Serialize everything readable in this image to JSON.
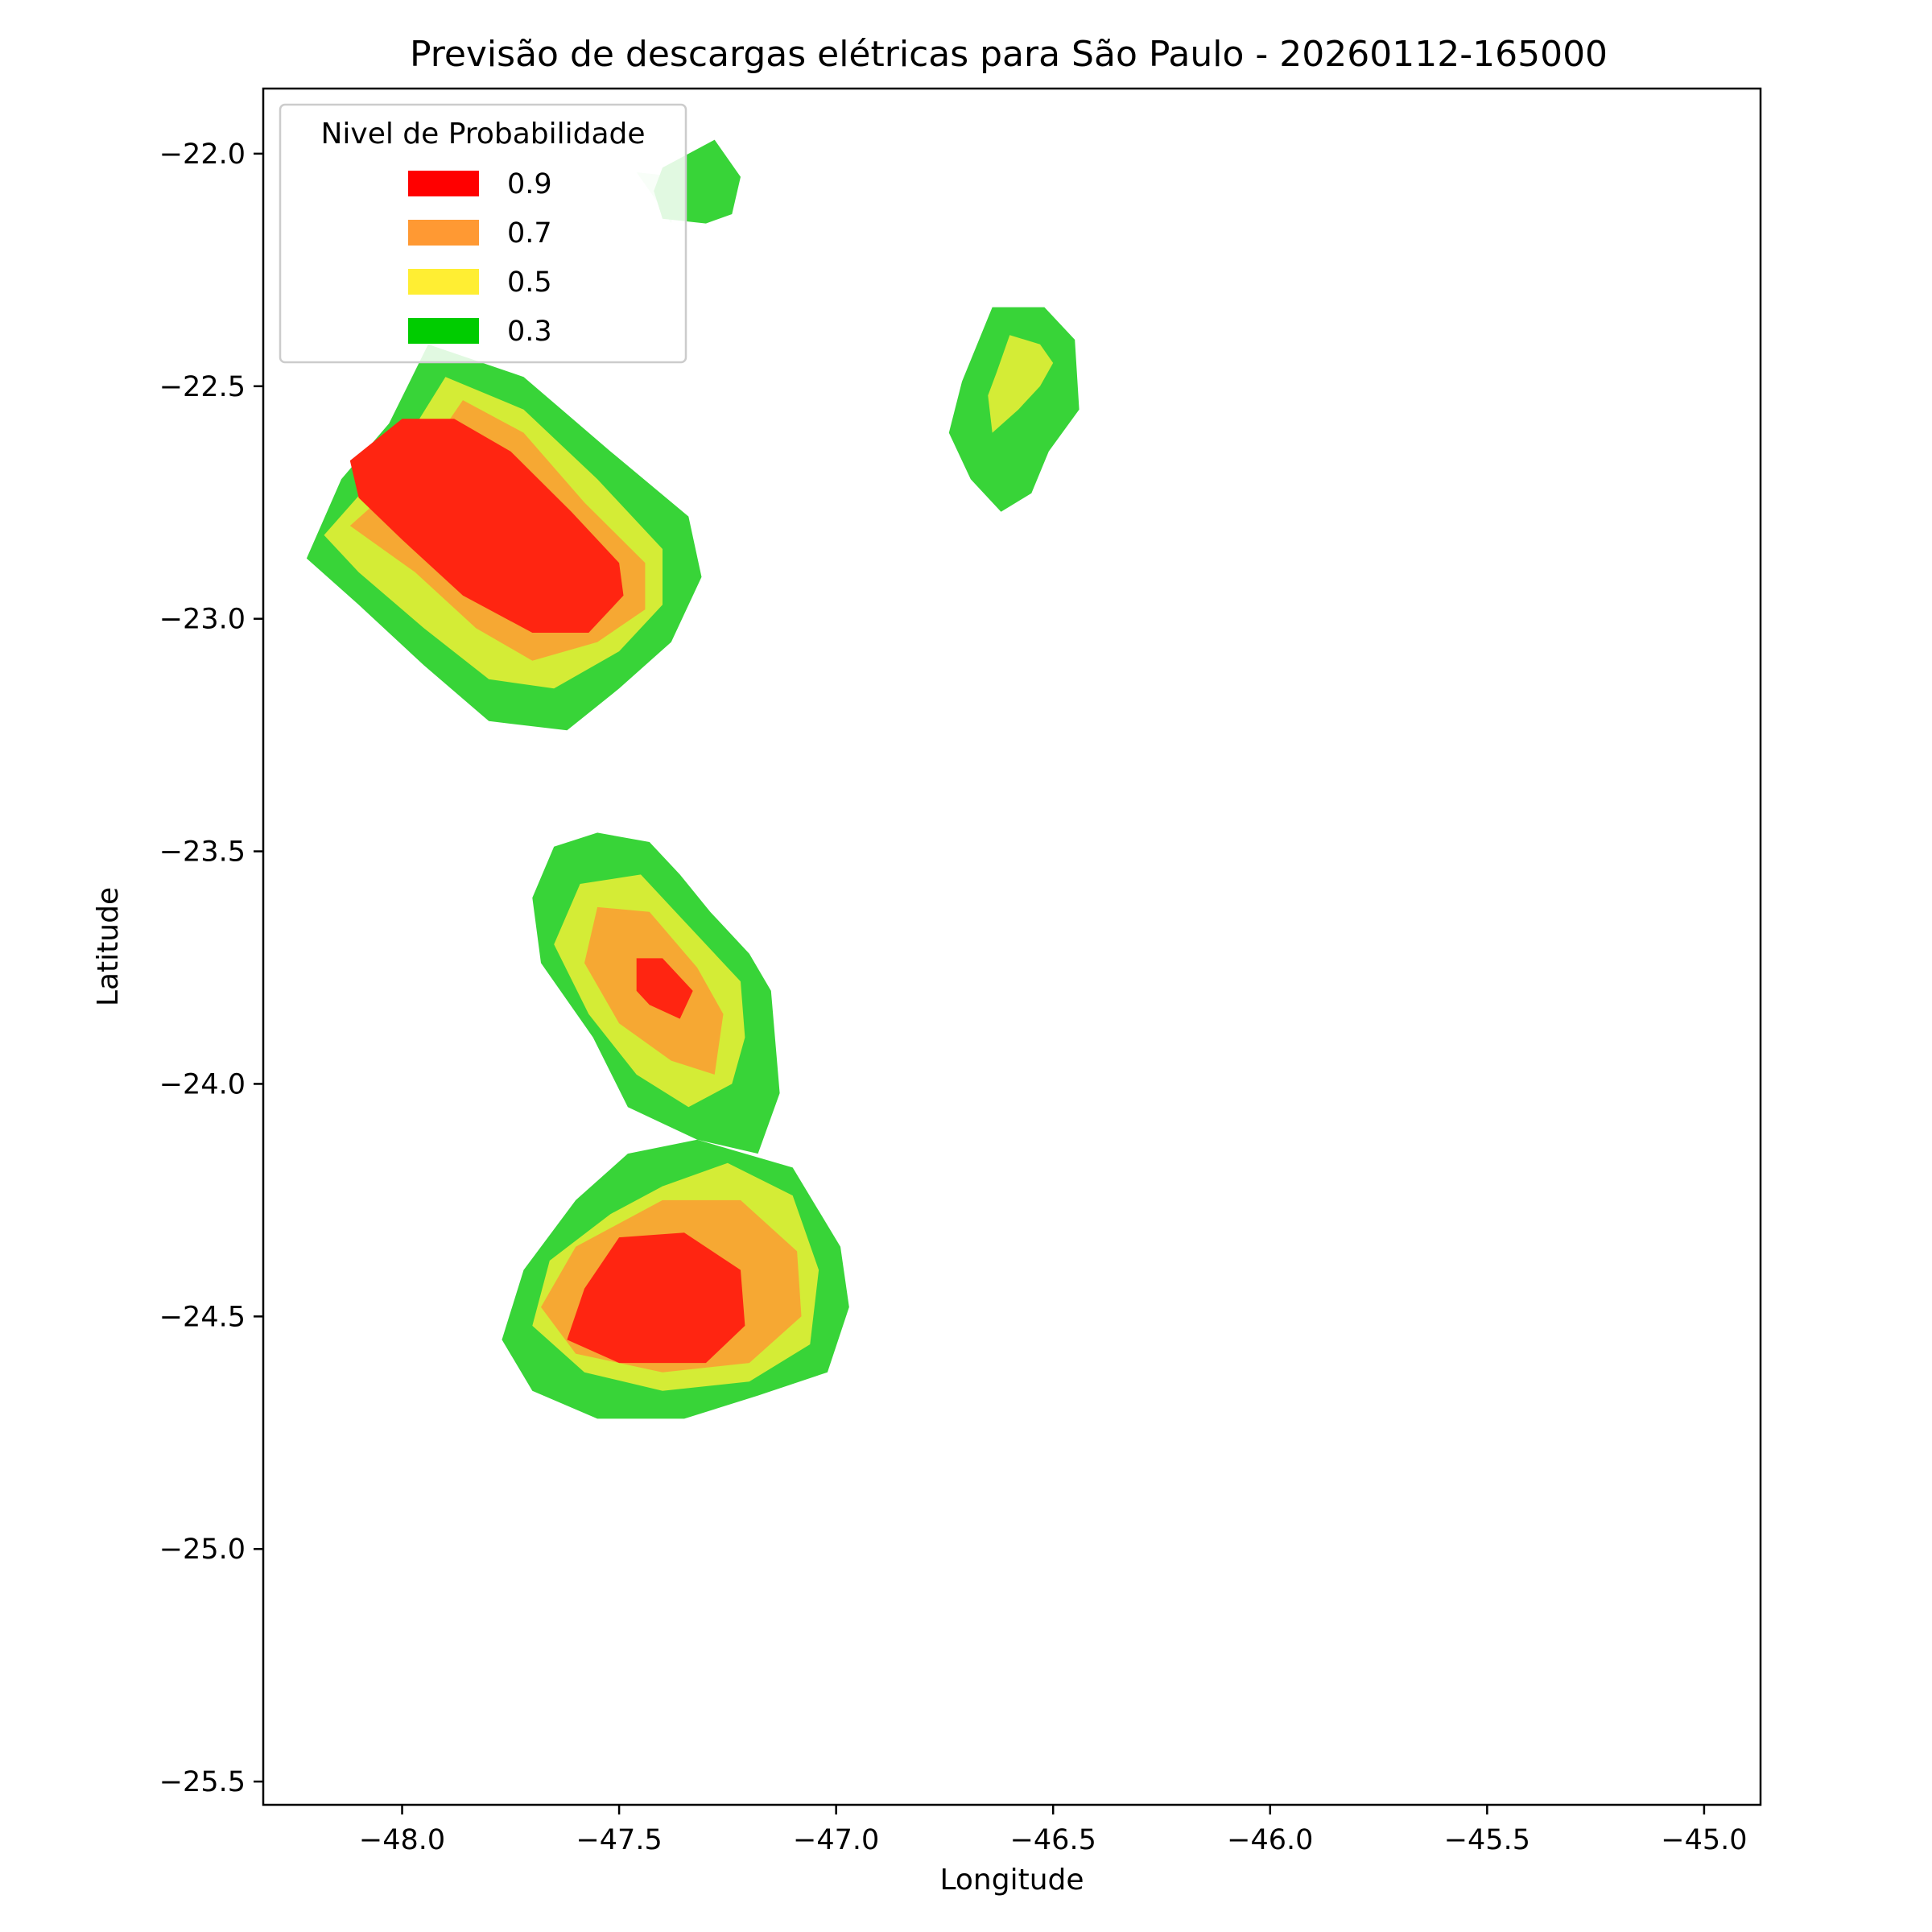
{
  "chart_data": {
    "type": "contour",
    "title": "Previsão de descargas elétricas para São Paulo - 20260112-165000",
    "xlabel": "Longitude",
    "ylabel": "Latitude",
    "xlim": [
      -48.32,
      -44.87
    ],
    "ylim": [
      -25.55,
      -21.86
    ],
    "xticks": [
      -48.0,
      -47.5,
      -47.0,
      -46.5,
      -46.0,
      -45.5,
      -45.0
    ],
    "xtick_labels": [
      "−48.0",
      "−47.5",
      "−47.0",
      "−46.5",
      "−46.0",
      "−45.5",
      "−45.0"
    ],
    "yticks": [
      -22.0,
      -22.5,
      -23.0,
      -23.5,
      -24.0,
      -24.5,
      -25.0,
      -25.5
    ],
    "ytick_labels": [
      "−22.0",
      "−22.5",
      "−23.0",
      "−23.5",
      "−24.0",
      "−24.5",
      "−25.0",
      "−25.5"
    ],
    "grid": false,
    "legend": {
      "title": "Nivel de Probabilidade",
      "placement": "upper-left",
      "entries": [
        {
          "label": "0.9",
          "color": "#ff0000"
        },
        {
          "label": "0.7",
          "color": "#ff9933"
        },
        {
          "label": "0.5",
          "color": "#ffee33"
        },
        {
          "label": "0.3",
          "color": "#00cc00"
        }
      ]
    },
    "fill_colors": {
      "0.3": "#38d438",
      "0.5": "#d4ec36",
      "0.7": "#f6a833",
      "0.9": "#ff2511",
      "faint": "#d2f5d2"
    },
    "regions": [
      {
        "name": "northwest-cell",
        "levels": [
          {
            "level": "0.3",
            "points": [
              [
                -48.03,
                -22.58
              ],
              [
                -47.94,
                -22.41
              ],
              [
                -47.72,
                -22.48
              ],
              [
                -47.52,
                -22.64
              ],
              [
                -47.34,
                -22.78
              ],
              [
                -47.31,
                -22.91
              ],
              [
                -47.38,
                -23.05
              ],
              [
                -47.5,
                -23.15
              ],
              [
                -47.62,
                -23.24
              ],
              [
                -47.8,
                -23.22
              ],
              [
                -47.95,
                -23.1
              ],
              [
                -48.1,
                -22.97
              ],
              [
                -48.22,
                -22.87
              ],
              [
                -48.14,
                -22.7
              ]
            ]
          },
          {
            "level": "0.5",
            "points": [
              [
                -48.0,
                -22.63
              ],
              [
                -47.9,
                -22.48
              ],
              [
                -47.72,
                -22.55
              ],
              [
                -47.55,
                -22.7
              ],
              [
                -47.4,
                -22.85
              ],
              [
                -47.4,
                -22.97
              ],
              [
                -47.5,
                -23.07
              ],
              [
                -47.65,
                -23.15
              ],
              [
                -47.8,
                -23.13
              ],
              [
                -47.95,
                -23.02
              ],
              [
                -48.1,
                -22.9
              ],
              [
                -48.18,
                -22.82
              ]
            ]
          },
          {
            "level": "0.7",
            "points": [
              [
                -47.97,
                -22.68
              ],
              [
                -47.86,
                -22.53
              ],
              [
                -47.72,
                -22.6
              ],
              [
                -47.58,
                -22.75
              ],
              [
                -47.44,
                -22.88
              ],
              [
                -47.44,
                -22.98
              ],
              [
                -47.55,
                -23.05
              ],
              [
                -47.7,
                -23.09
              ],
              [
                -47.83,
                -23.02
              ],
              [
                -47.97,
                -22.9
              ],
              [
                -48.12,
                -22.8
              ],
              [
                -48.06,
                -22.75
              ]
            ]
          },
          {
            "level": "0.9",
            "points": [
              [
                -48.12,
                -22.66
              ],
              [
                -48.0,
                -22.57
              ],
              [
                -47.88,
                -22.57
              ],
              [
                -47.75,
                -22.64
              ],
              [
                -47.61,
                -22.77
              ],
              [
                -47.5,
                -22.88
              ],
              [
                -47.49,
                -22.95
              ],
              [
                -47.57,
                -23.03
              ],
              [
                -47.7,
                -23.03
              ],
              [
                -47.86,
                -22.95
              ],
              [
                -48.0,
                -22.83
              ],
              [
                -48.1,
                -22.74
              ]
            ]
          }
        ]
      },
      {
        "name": "northern-small-cell",
        "levels": [
          {
            "level": "faint",
            "points": [
              [
                -47.46,
                -22.04
              ],
              [
                -47.36,
                -22.05
              ],
              [
                -47.38,
                -22.15
              ],
              [
                -47.4,
                -22.12
              ]
            ]
          },
          {
            "level": "0.3",
            "points": [
              [
                -47.4,
                -22.03
              ],
              [
                -47.28,
                -21.97
              ],
              [
                -47.22,
                -22.05
              ],
              [
                -47.24,
                -22.13
              ],
              [
                -47.3,
                -22.15
              ],
              [
                -47.4,
                -22.14
              ],
              [
                -47.42,
                -22.08
              ]
            ]
          }
        ]
      },
      {
        "name": "northeast-cell",
        "levels": [
          {
            "level": "0.3",
            "points": [
              [
                -46.71,
                -22.49
              ],
              [
                -46.64,
                -22.33
              ],
              [
                -46.52,
                -22.33
              ],
              [
                -46.45,
                -22.4
              ],
              [
                -46.44,
                -22.55
              ],
              [
                -46.51,
                -22.64
              ],
              [
                -46.55,
                -22.73
              ],
              [
                -46.62,
                -22.77
              ],
              [
                -46.69,
                -22.7
              ],
              [
                -46.74,
                -22.6
              ]
            ]
          },
          {
            "level": "0.5",
            "points": [
              [
                -46.63,
                -22.47
              ],
              [
                -46.6,
                -22.39
              ],
              [
                -46.53,
                -22.41
              ],
              [
                -46.5,
                -22.45
              ],
              [
                -46.53,
                -22.5
              ],
              [
                -46.58,
                -22.55
              ],
              [
                -46.64,
                -22.6
              ],
              [
                -46.65,
                -22.52
              ]
            ]
          }
        ]
      },
      {
        "name": "central-cell",
        "levels": [
          {
            "level": "0.3",
            "points": [
              [
                -47.65,
                -23.49
              ],
              [
                -47.55,
                -23.46
              ],
              [
                -47.43,
                -23.48
              ],
              [
                -47.36,
                -23.55
              ],
              [
                -47.29,
                -23.63
              ],
              [
                -47.2,
                -23.72
              ],
              [
                -47.15,
                -23.8
              ],
              [
                -47.13,
                -24.02
              ],
              [
                -47.18,
                -24.15
              ],
              [
                -47.32,
                -24.12
              ],
              [
                -47.48,
                -24.05
              ],
              [
                -47.56,
                -23.9
              ],
              [
                -47.68,
                -23.74
              ],
              [
                -47.7,
                -23.6
              ]
            ]
          },
          {
            "level": "0.5",
            "points": [
              [
                -47.59,
                -23.57
              ],
              [
                -47.45,
                -23.55
              ],
              [
                -47.33,
                -23.67
              ],
              [
                -47.22,
                -23.78
              ],
              [
                -47.21,
                -23.9
              ],
              [
                -47.24,
                -24.0
              ],
              [
                -47.34,
                -24.05
              ],
              [
                -47.46,
                -23.98
              ],
              [
                -47.57,
                -23.85
              ],
              [
                -47.65,
                -23.7
              ]
            ]
          },
          {
            "level": "0.7",
            "points": [
              [
                -47.55,
                -23.62
              ],
              [
                -47.43,
                -23.63
              ],
              [
                -47.32,
                -23.75
              ],
              [
                -47.26,
                -23.85
              ],
              [
                -47.28,
                -23.98
              ],
              [
                -47.38,
                -23.95
              ],
              [
                -47.5,
                -23.87
              ],
              [
                -47.58,
                -23.74
              ]
            ]
          },
          {
            "level": "0.9",
            "points": [
              [
                -47.46,
                -23.73
              ],
              [
                -47.4,
                -23.73
              ],
              [
                -47.33,
                -23.8
              ],
              [
                -47.36,
                -23.86
              ],
              [
                -47.43,
                -23.83
              ],
              [
                -47.46,
                -23.8
              ]
            ]
          }
        ]
      },
      {
        "name": "southern-cell",
        "levels": [
          {
            "level": "0.3",
            "points": [
              [
                -47.48,
                -24.15
              ],
              [
                -47.32,
                -24.12
              ],
              [
                -47.1,
                -24.18
              ],
              [
                -46.99,
                -24.35
              ],
              [
                -46.97,
                -24.48
              ],
              [
                -47.02,
                -24.62
              ],
              [
                -47.18,
                -24.67
              ],
              [
                -47.35,
                -24.72
              ],
              [
                -47.55,
                -24.72
              ],
              [
                -47.7,
                -24.66
              ],
              [
                -47.77,
                -24.55
              ],
              [
                -47.72,
                -24.4
              ],
              [
                -47.6,
                -24.25
              ]
            ]
          },
          {
            "level": "0.5",
            "points": [
              [
                -47.4,
                -24.22
              ],
              [
                -47.25,
                -24.17
              ],
              [
                -47.1,
                -24.24
              ],
              [
                -47.04,
                -24.4
              ],
              [
                -47.06,
                -24.56
              ],
              [
                -47.2,
                -24.64
              ],
              [
                -47.4,
                -24.66
              ],
              [
                -47.58,
                -24.62
              ],
              [
                -47.7,
                -24.52
              ],
              [
                -47.66,
                -24.38
              ],
              [
                -47.52,
                -24.28
              ]
            ]
          },
          {
            "level": "0.7",
            "points": [
              [
                -47.4,
                -24.25
              ],
              [
                -47.22,
                -24.25
              ],
              [
                -47.09,
                -24.36
              ],
              [
                -47.08,
                -24.5
              ],
              [
                -47.2,
                -24.6
              ],
              [
                -47.4,
                -24.62
              ],
              [
                -47.6,
                -24.58
              ],
              [
                -47.68,
                -24.48
              ],
              [
                -47.6,
                -24.35
              ]
            ]
          },
          {
            "level": "0.9",
            "points": [
              [
                -47.5,
                -24.33
              ],
              [
                -47.35,
                -24.32
              ],
              [
                -47.22,
                -24.4
              ],
              [
                -47.21,
                -24.52
              ],
              [
                -47.3,
                -24.6
              ],
              [
                -47.5,
                -24.6
              ],
              [
                -47.62,
                -24.55
              ],
              [
                -47.58,
                -24.44
              ]
            ]
          }
        ]
      }
    ]
  }
}
